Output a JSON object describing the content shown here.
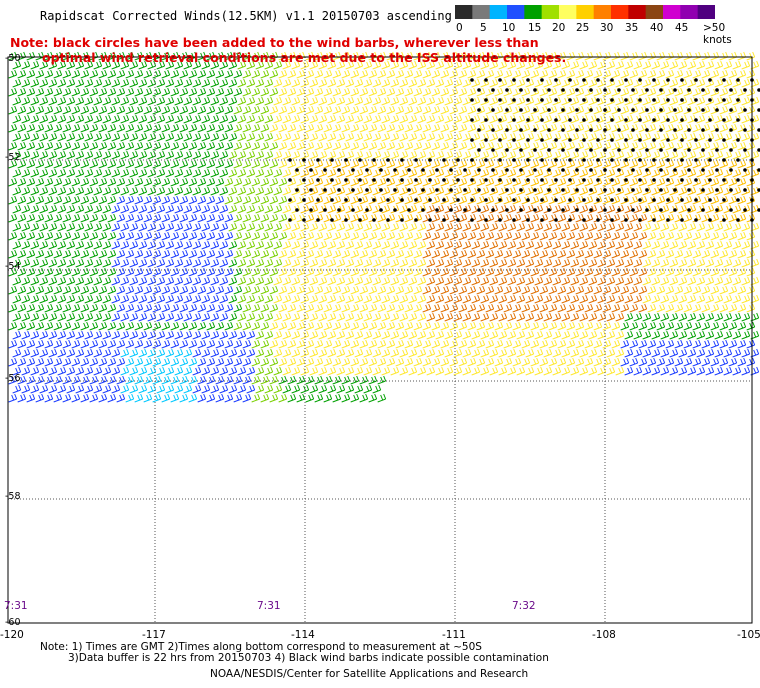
{
  "header": {
    "title": "Rapidscat Corrected Winds(12.5KM) v1.1 20150703 ascending"
  },
  "notes": {
    "line1": "Note: black circles have been added to the wind barbs, wherever less than",
    "line2": "optimal wind retrieval conditions are met due to the ISS altitude changes."
  },
  "colorbar": {
    "labels": [
      "0",
      "5",
      "10",
      "15",
      "20",
      "25",
      "30",
      "35",
      "40",
      "45",
      ">50 knots"
    ],
    "colors": [
      "#2a2a2a",
      "#7a7a7a",
      "#00b4ff",
      "#2050ff",
      "#00a000",
      "#a0e000",
      "#ffff60",
      "#ffd000",
      "#ff8000",
      "#ff3000",
      "#c00000",
      "#8b4513",
      "#d000d0",
      "#9000b0",
      "#500080"
    ]
  },
  "map": {
    "lon_labels": [
      "-120",
      "-117",
      "-114",
      "-111",
      "-108",
      "-105"
    ],
    "lat_labels": [
      "-50",
      "-52",
      "-54",
      "-56",
      "-58",
      "-60"
    ],
    "time_labels": [
      "7:31",
      "7:31",
      "7:32"
    ]
  },
  "footer": {
    "line1": "Note: 1) Times are GMT 2)Times along bottom correspond to measurement at ~50S",
    "line2": "3)Data buffer is 22 hrs from 20150703 4) Black wind barbs indicate possible contamination",
    "line3": "NOAA/NESDIS/Center for Satellite Applications and Research"
  }
}
